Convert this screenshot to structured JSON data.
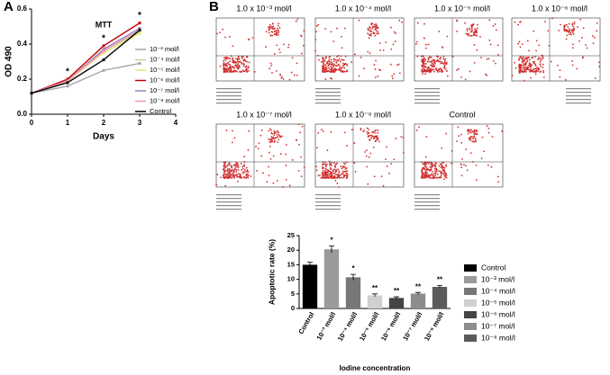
{
  "panel_labels": [
    "A",
    "B"
  ],
  "chart_data": [
    {
      "type": "line",
      "title": "MTT",
      "xlabel": "Days",
      "ylabel": "OD 490",
      "x": [
        0,
        1,
        2,
        3
      ],
      "xlim": [
        0,
        4
      ],
      "xticks": [
        0,
        1,
        2,
        3,
        4
      ],
      "ylim": [
        0,
        0.6
      ],
      "yticks": [
        {
          "value": 0,
          "label": "0.0"
        },
        {
          "value": 0.2,
          "label": "0.2"
        },
        {
          "value": 0.4,
          "label": "0.4"
        },
        {
          "value": 0.6,
          "label": "0.6"
        }
      ],
      "significance": [
        null,
        "*",
        "*",
        "*"
      ],
      "series": [
        {
          "name": "10⁻³ mol/l",
          "color": "#a6a6a6",
          "values": [
            0.12,
            0.16,
            0.25,
            0.29
          ]
        },
        {
          "name": "10⁻⁴ mol/l",
          "color": "#b8dc8c",
          "values": [
            0.12,
            0.19,
            0.36,
            0.47
          ]
        },
        {
          "name": "10⁻⁵ mol/l",
          "color": "#e8e878",
          "values": [
            0.12,
            0.19,
            0.35,
            0.46
          ]
        },
        {
          "name": "10⁻⁶ mol/l",
          "color": "#c00000",
          "values": [
            0.12,
            0.2,
            0.39,
            0.52
          ]
        },
        {
          "name": "10⁻⁷ mol/l",
          "color": "#9c7cc0",
          "values": [
            0.12,
            0.19,
            0.37,
            0.49
          ]
        },
        {
          "name": "10⁻⁸ mol/l",
          "color": "#f29cb0",
          "values": [
            0.12,
            0.19,
            0.36,
            0.48
          ]
        },
        {
          "name": "Control",
          "color": "#000000",
          "values": [
            0.12,
            0.18,
            0.31,
            0.48
          ]
        }
      ]
    },
    {
      "type": "bar",
      "xlabel": "Iodine concentration",
      "ylabel": "Apoptotic rate (%)",
      "categories": [
        "Control",
        "10⁻³ mol/l",
        "10⁻⁴ mol/l",
        "10⁻⁵ mol/l",
        "10⁻⁶ mol/l",
        "10⁻⁷ mol/l",
        "10⁻⁸ mol/l"
      ],
      "colors": [
        "#000000",
        "#9a9a9a",
        "#777777",
        "#d0d0d0",
        "#444444",
        "#8c8c8c",
        "#5a5a5a"
      ],
      "values": [
        15,
        20.3,
        10.7,
        4.5,
        3.6,
        5.1,
        7.4
      ],
      "errors": [
        0.9,
        1.2,
        1,
        0.5,
        0.4,
        0.4,
        0.5
      ],
      "significance": [
        null,
        "*",
        "*",
        "**",
        "**",
        "**",
        "**"
      ],
      "ylim": [
        0,
        25
      ],
      "yticks": [
        0,
        5,
        10,
        15,
        20,
        25
      ]
    }
  ],
  "flow_plots": {
    "titles": [
      "1.0 x 10⁻³ mol/l",
      "1.0 x 10⁻⁴ mol/l",
      "1.0 x 10⁻⁵ mol/l",
      "1.0 x 10⁻⁶ mol/l",
      "1.0 x 10⁻⁷ mol/l",
      "1.0 x 10⁻⁸ mol/l",
      "Control"
    ]
  }
}
